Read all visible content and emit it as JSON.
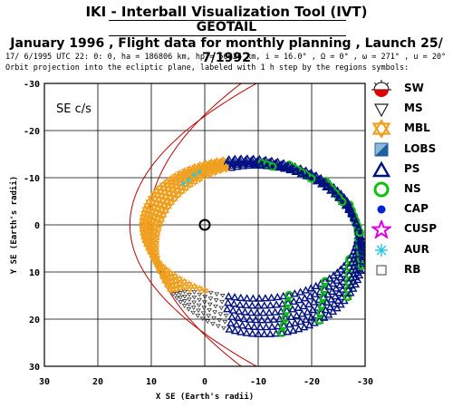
{
  "header": {
    "title": "IKI - Interball Visualization Tool (IVT)",
    "satellite": "GEOTAIL",
    "subtitle": "January 1996 ,  Flight data for monthly planning ,  Launch 25/ 7/1992",
    "orbit_info": "17/ 6/1995 UTC 22: 0: 0, ha = 186806 km, hp =  56626 km, i = 16.0° , Ω =   0° , ω = 271° , u =  20°",
    "projection_info": "Orbit projection into the ecliptic plane, labeled with 1 h step by the regions symbols:"
  },
  "plot": {
    "frame_label": "SE c/s",
    "x_axis_label": "X SE (Earth's radii)",
    "y_axis_label": "Y SE (Earth's radii)",
    "x_ticks": [
      "30",
      "20",
      "10",
      "0",
      "-10",
      "-20",
      "-30"
    ],
    "y_ticks": [
      "-30",
      "-20",
      "-10",
      "0",
      "10",
      "20",
      "30"
    ],
    "xlim": [
      30,
      -30
    ],
    "ylim": [
      -30,
      30
    ],
    "grid": true
  },
  "legend": [
    {
      "label": "SW",
      "symbol": "sun-icon",
      "color": "#e00000"
    },
    {
      "label": "MS",
      "symbol": "down-triangle-icon",
      "color": "#202020"
    },
    {
      "label": "MBL",
      "symbol": "star-of-david-icon",
      "color": "#f0a020"
    },
    {
      "label": "LOBS",
      "symbol": "split-square-icon",
      "color": "#2060a0"
    },
    {
      "label": "PS",
      "symbol": "up-triangle-icon",
      "color": "#001080"
    },
    {
      "label": "NS",
      "symbol": "ring-icon",
      "color": "#10c010"
    },
    {
      "label": "CAP",
      "symbol": "dot-icon",
      "color": "#0020e0"
    },
    {
      "label": "CUSP",
      "symbol": "star-icon",
      "color": "#e000e0"
    },
    {
      "label": "AUR",
      "symbol": "asterisk-icon",
      "color": "#20c8e0"
    },
    {
      "label": "RB",
      "symbol": "square-icon",
      "color": "#404040"
    }
  ],
  "colors": {
    "boundary": "#c00000",
    "earth": "#000000",
    "grid": "#000000"
  }
}
